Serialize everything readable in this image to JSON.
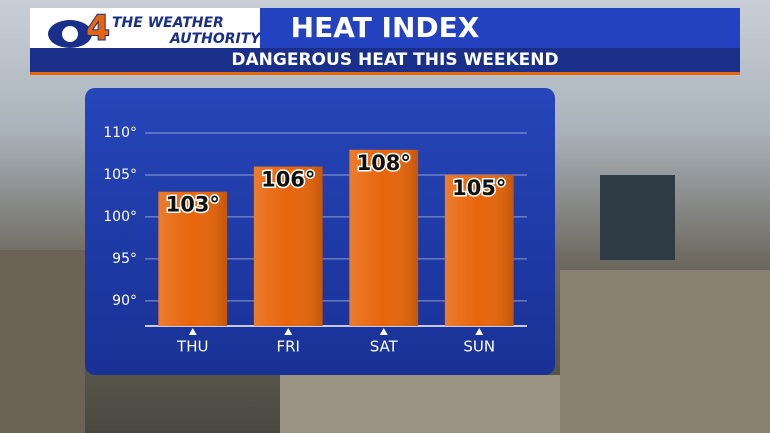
{
  "branding": {
    "channel": "4",
    "tagline_1": "THE WEATHER",
    "tagline_2": "AUTHORITY"
  },
  "chart_data": {
    "type": "bar",
    "title": "HEAT INDEX",
    "subtitle": "DANGEROUS HEAT THIS WEEKEND",
    "categories": [
      "THU",
      "FRI",
      "SAT",
      "SUN"
    ],
    "values": [
      103,
      106,
      108,
      105
    ],
    "value_labels": [
      "103°",
      "106°",
      "108°",
      "105°"
    ],
    "color": "#e8650a",
    "ylim": [
      87,
      110
    ],
    "yticks": [
      {
        "value": 90,
        "label": "90°"
      },
      {
        "value": 95,
        "label": "95°"
      },
      {
        "value": 100,
        "label": "100°"
      },
      {
        "value": 105,
        "label": "105°"
      },
      {
        "value": 110,
        "label": "110°"
      }
    ],
    "grid": true
  }
}
